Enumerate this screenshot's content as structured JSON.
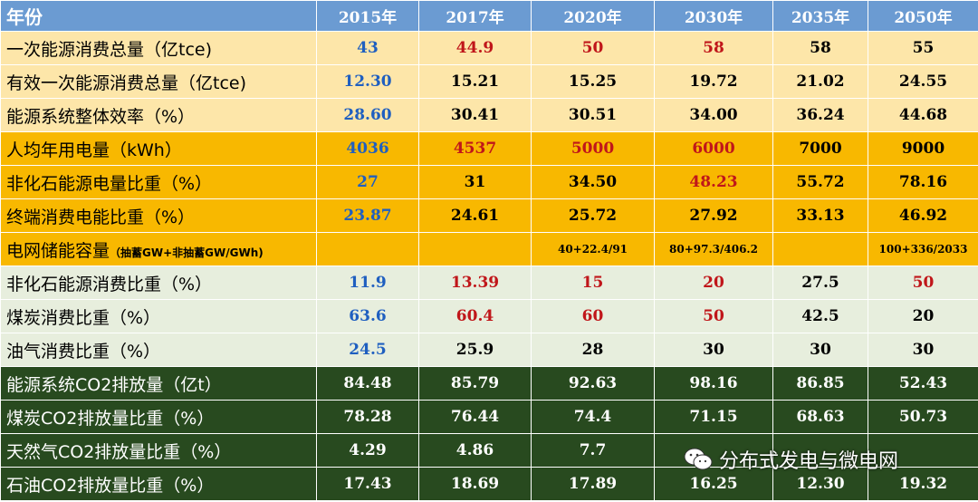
{
  "table": {
    "header": [
      "年份",
      "2015年",
      "2017年",
      "2020年",
      "2030年",
      "2035年",
      "2050年"
    ],
    "rows": [
      {
        "label": "一次能源消费总量（亿tce)",
        "values": [
          "43",
          "44.9",
          "50",
          "58",
          "58",
          "55"
        ]
      },
      {
        "label": "有效一次能源消费总量（亿tce)",
        "values": [
          "12.30",
          "15.21",
          "15.25",
          "19.72",
          "21.02",
          "24.55"
        ]
      },
      {
        "label": "能源系统整体效率（%）",
        "values": [
          "28.60",
          "30.41",
          "30.51",
          "34.00",
          "36.24",
          "44.68"
        ]
      },
      {
        "label": "人均年用电量（kWh）",
        "values": [
          "4036",
          "4537",
          "5000",
          "6000",
          "7000",
          "9000"
        ]
      },
      {
        "label": "非化石能源电量比重（%）",
        "values": [
          "27",
          "31",
          "34.50",
          "48.23",
          "55.72",
          "78.16"
        ]
      },
      {
        "label": "终端消费电能比重（%）",
        "values": [
          "23.87",
          "24.61",
          "25.72",
          "27.92",
          "33.13",
          "46.92"
        ]
      },
      {
        "label": "电网储能容量",
        "label_note": "（抽蓄GW+非抽蓄GW/GWh)",
        "values": [
          "",
          "",
          "40+22.4/91",
          "80+97.3/406.2",
          "",
          "100+336/2033"
        ]
      },
      {
        "label": "非化石能源消费比重（%）",
        "values": [
          "11.9",
          "13.39",
          "15",
          "20",
          "27.5",
          "50"
        ]
      },
      {
        "label": "煤炭消费比重（%）",
        "values": [
          "63.6",
          "60.4",
          "60",
          "50",
          "42.5",
          "20"
        ]
      },
      {
        "label": "油气消费比重（%）",
        "values": [
          "24.5",
          "25.9",
          "28",
          "30",
          "30",
          "30"
        ]
      },
      {
        "label": "能源系统CO2排放量（亿t）",
        "values": [
          "84.48",
          "85.79",
          "92.63",
          "98.16",
          "86.85",
          "52.43"
        ]
      },
      {
        "label": "煤炭CO2排放量比重（%）",
        "values": [
          "78.28",
          "76.44",
          "74.4",
          "71.15",
          "68.63",
          "50.73"
        ]
      },
      {
        "label": "天然气CO2排放量比重（%）",
        "values": [
          "4.29",
          "4.86",
          "7.7",
          "",
          "",
          ""
        ]
      },
      {
        "label": "石油CO2排放量比重（%）",
        "values": [
          "17.43",
          "18.69",
          "17.89",
          "16.25",
          "12.30",
          "19.32"
        ]
      }
    ]
  },
  "watermark": {
    "text": "分布式发电与微电网",
    "icon": "wechat-icon"
  },
  "colors": {
    "header_bg": "#6b9bd2",
    "light_yellow": "#fde6a9",
    "orange": "#f8b800",
    "light_green": "#e7eedd",
    "dark_green": "#284a1f",
    "blue_text": "#1f5fc0",
    "red_text": "#c0161a"
  }
}
